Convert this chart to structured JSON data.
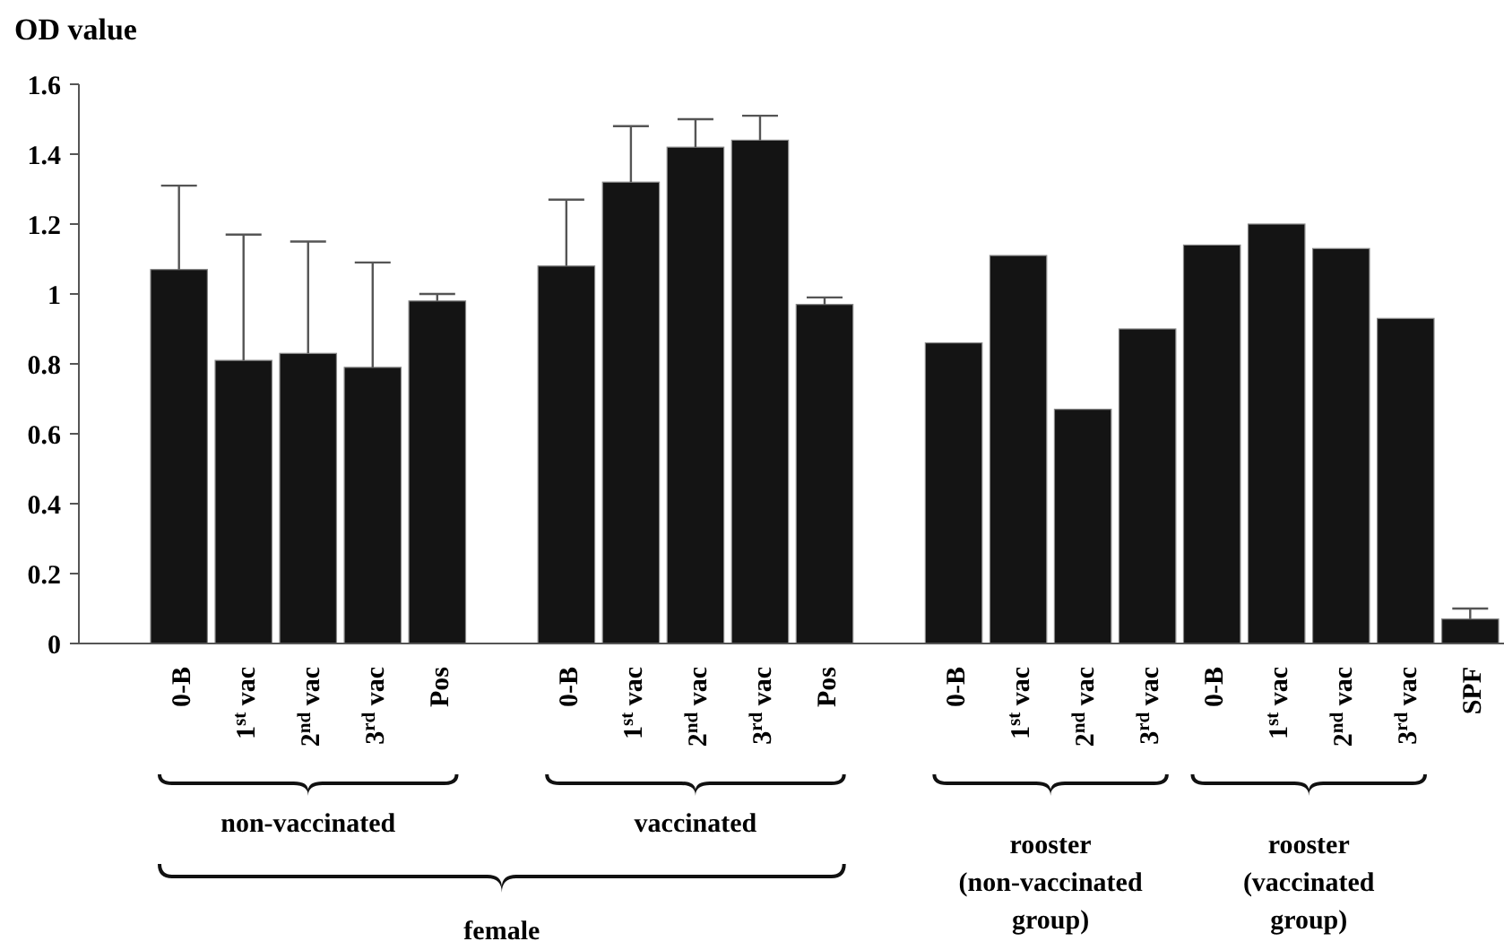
{
  "chart_data": {
    "type": "bar",
    "ylabel": "OD value",
    "categories": [
      "0-B",
      "1$^{st}$ vac",
      "2$^{nd}$ vac",
      "3$^{rd}$ vac",
      "Pos",
      null,
      "0-B",
      "1$^{st}$ vac",
      "2$^{nd}$ vac",
      "3$^{rd}$ vac",
      "Pos",
      null,
      "0-B",
      "1$^{st}$ vac",
      "2$^{nd}$ vac",
      "3$^{rd}$ vac",
      "0-B",
      "1$^{st}$ vac",
      "2$^{nd}$ vac",
      "3$^{rd}$ vac",
      "SPF"
    ],
    "values": [
      1.07,
      0.81,
      0.83,
      0.79,
      0.98,
      null,
      1.08,
      1.32,
      1.42,
      1.44,
      0.97,
      null,
      0.86,
      1.11,
      0.67,
      0.9,
      1.14,
      1.2,
      1.13,
      0.93,
      0.07
    ],
    "errors": [
      [
        1.07,
        1.31
      ],
      [
        0.81,
        1.17
      ],
      [
        0.83,
        1.15
      ],
      [
        0.79,
        1.09
      ],
      [
        0.98,
        1
      ],
      null,
      [
        1.08,
        1.27
      ],
      [
        1.32,
        1.48
      ],
      [
        1.42,
        1.5
      ],
      [
        1.44,
        1.51
      ],
      [
        0.97,
        0.99
      ],
      null,
      null,
      null,
      null,
      null,
      null,
      null,
      null,
      null,
      [
        0.07,
        0.1
      ]
    ],
    "color": "#141414",
    "ylim": [
      0,
      1.6
    ],
    "yticks": [
      0,
      0.2,
      0.4,
      0.6,
      0.8,
      1,
      1.2,
      1.4,
      1.6
    ],
    "grid": false,
    "annotations": [
      "non-vaccinated",
      "vaccinated",
      "female",
      "rooster (non-vaccinated group)",
      "rooster (vaccinated group)"
    ]
  }
}
